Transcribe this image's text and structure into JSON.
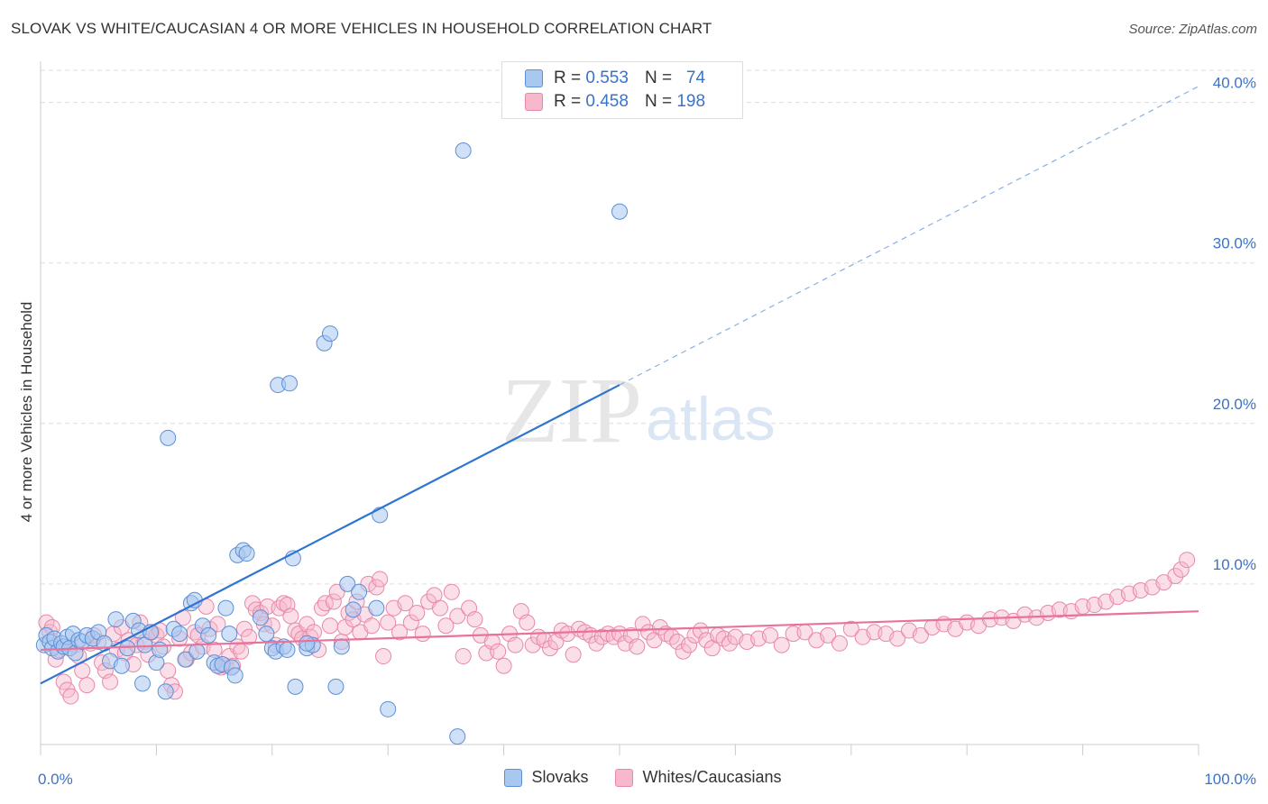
{
  "header": {
    "title": "SLOVAK VS WHITE/CAUCASIAN 4 OR MORE VEHICLES IN HOUSEHOLD CORRELATION CHART",
    "source": "Source: ZipAtlas.com"
  },
  "watermark": {
    "zip": "ZIP",
    "atlas": "atlas"
  },
  "colors": {
    "blue_fill": "#a9c8f0",
    "blue_stroke": "#5b8fd6",
    "blue_line": "#2f74d0",
    "pink_fill": "#f7b8cb",
    "pink_stroke": "#e888a8",
    "pink_line": "#e8739a",
    "tick_text": "#3b72c9"
  },
  "legend": {
    "rows": [
      {
        "r_label": "R =",
        "r_value": "0.553",
        "n_label": "N =",
        "n_value": "74"
      },
      {
        "r_label": "R =",
        "r_value": "0.458",
        "n_label": "N =",
        "n_value": "198"
      }
    ],
    "bottom": [
      "Slovaks",
      "Whites/Caucasians"
    ]
  },
  "chart_data": {
    "type": "scatter",
    "title": "SLOVAK VS WHITE/CAUCASIAN 4 OR MORE VEHICLES IN HOUSEHOLD CORRELATION CHART",
    "xlabel": "",
    "ylabel": "4 or more Vehicles in Household",
    "xlim": [
      0,
      100
    ],
    "ylim": [
      0,
      42
    ],
    "x_tick_labels": [
      "0.0%",
      "100.0%"
    ],
    "y_ticks": [
      10,
      20,
      30,
      40
    ],
    "y_tick_labels": [
      "10.0%",
      "20.0%",
      "30.0%",
      "40.0%"
    ],
    "grid": true,
    "legend_position": "top-center",
    "series": [
      {
        "name": "Slovaks",
        "R": 0.553,
        "N": 74,
        "trend": {
          "x0": 0,
          "y0": 3.8,
          "x1": 50,
          "y1": 22.4,
          "dashed_to_x": 100,
          "dashed_to_y": 41.0
        },
        "points": [
          [
            0.3,
            6.2
          ],
          [
            0.5,
            6.8
          ],
          [
            0.8,
            6.4
          ],
          [
            1.0,
            6.0
          ],
          [
            1.2,
            6.6
          ],
          [
            1.5,
            5.8
          ],
          [
            1.8,
            6.3
          ],
          [
            2.0,
            6.1
          ],
          [
            2.3,
            6.7
          ],
          [
            2.5,
            6.0
          ],
          [
            2.8,
            6.9
          ],
          [
            3.0,
            5.7
          ],
          [
            3.3,
            6.5
          ],
          [
            3.6,
            6.4
          ],
          [
            4.0,
            6.8
          ],
          [
            4.5,
            6.6
          ],
          [
            5.0,
            7.0
          ],
          [
            5.5,
            6.3
          ],
          [
            6.0,
            5.2
          ],
          [
            6.5,
            7.8
          ],
          [
            7.0,
            4.9
          ],
          [
            7.5,
            6.0
          ],
          [
            8.0,
            7.7
          ],
          [
            8.5,
            7.1
          ],
          [
            8.8,
            3.8
          ],
          [
            9.0,
            6.2
          ],
          [
            9.5,
            7.0
          ],
          [
            10.0,
            5.1
          ],
          [
            10.3,
            5.9
          ],
          [
            10.8,
            3.3
          ],
          [
            11.0,
            19.1
          ],
          [
            11.5,
            7.2
          ],
          [
            12.0,
            6.9
          ],
          [
            12.5,
            5.3
          ],
          [
            13.0,
            8.8
          ],
          [
            13.3,
            9.0
          ],
          [
            13.5,
            5.8
          ],
          [
            14.0,
            7.4
          ],
          [
            14.5,
            6.8
          ],
          [
            15.0,
            5.1
          ],
          [
            15.3,
            4.9
          ],
          [
            15.7,
            5.0
          ],
          [
            16.0,
            8.5
          ],
          [
            16.3,
            6.9
          ],
          [
            16.5,
            4.8
          ],
          [
            16.8,
            4.3
          ],
          [
            17.0,
            11.8
          ],
          [
            17.5,
            12.1
          ],
          [
            17.8,
            11.9
          ],
          [
            19.0,
            7.9
          ],
          [
            19.5,
            6.9
          ],
          [
            20.0,
            6.0
          ],
          [
            20.3,
            5.8
          ],
          [
            20.5,
            22.4
          ],
          [
            21.0,
            6.1
          ],
          [
            21.3,
            5.9
          ],
          [
            21.5,
            22.5
          ],
          [
            21.8,
            11.6
          ],
          [
            22.0,
            3.6
          ],
          [
            23.0,
            6.0
          ],
          [
            23.5,
            6.2
          ],
          [
            24.5,
            25.0
          ],
          [
            25.0,
            25.6
          ],
          [
            23.0,
            6.3
          ],
          [
            25.5,
            3.6
          ],
          [
            26.0,
            6.1
          ],
          [
            26.5,
            10.0
          ],
          [
            27.0,
            8.4
          ],
          [
            27.5,
            9.5
          ],
          [
            29.0,
            8.5
          ],
          [
            29.3,
            14.3
          ],
          [
            30.0,
            2.2
          ],
          [
            36.0,
            0.5
          ],
          [
            36.5,
            37.0
          ],
          [
            50.0,
            33.2
          ]
        ]
      },
      {
        "name": "Whites/Caucasians",
        "R": 0.458,
        "N": 198,
        "trend": {
          "x0": 0,
          "y0": 5.9,
          "x1": 100,
          "y1": 8.3
        },
        "points": [
          [
            0.5,
            7.6
          ],
          [
            0.8,
            7.0
          ],
          [
            1.0,
            7.3
          ],
          [
            1.3,
            5.3
          ],
          [
            1.6,
            5.9
          ],
          [
            2.0,
            3.9
          ],
          [
            2.3,
            3.4
          ],
          [
            2.6,
            3.0
          ],
          [
            3.0,
            6.2
          ],
          [
            3.3,
            5.5
          ],
          [
            3.6,
            4.6
          ],
          [
            4.0,
            3.7
          ],
          [
            4.3,
            6.3
          ],
          [
            4.6,
            6.8
          ],
          [
            5.0,
            6.4
          ],
          [
            5.3,
            5.1
          ],
          [
            5.6,
            4.6
          ],
          [
            6.0,
            3.9
          ],
          [
            6.3,
            6.9
          ],
          [
            6.6,
            5.9
          ],
          [
            7.0,
            7.3
          ],
          [
            7.3,
            5.7
          ],
          [
            7.6,
            6.5
          ],
          [
            8.0,
            5.0
          ],
          [
            8.3,
            6.2
          ],
          [
            8.6,
            7.6
          ],
          [
            9.0,
            6.4
          ],
          [
            9.3,
            5.6
          ],
          [
            9.6,
            7.0
          ],
          [
            10.0,
            6.8
          ],
          [
            10.3,
            7.1
          ],
          [
            10.6,
            6.1
          ],
          [
            11.0,
            4.6
          ],
          [
            11.3,
            3.7
          ],
          [
            11.6,
            3.3
          ],
          [
            12.0,
            6.6
          ],
          [
            12.3,
            7.9
          ],
          [
            12.6,
            5.3
          ],
          [
            13.0,
            5.7
          ],
          [
            13.3,
            7.0
          ],
          [
            13.6,
            6.8
          ],
          [
            14.0,
            6.1
          ],
          [
            14.3,
            8.6
          ],
          [
            14.6,
            7.2
          ],
          [
            15.0,
            5.9
          ],
          [
            15.3,
            7.5
          ],
          [
            15.6,
            4.8
          ],
          [
            16.0,
            4.9
          ],
          [
            16.3,
            5.5
          ],
          [
            16.6,
            4.9
          ],
          [
            17.0,
            6.1
          ],
          [
            17.3,
            5.8
          ],
          [
            17.6,
            7.2
          ],
          [
            18.0,
            6.7
          ],
          [
            18.3,
            8.8
          ],
          [
            18.6,
            8.4
          ],
          [
            19.0,
            8.2
          ],
          [
            19.3,
            7.5
          ],
          [
            19.6,
            8.6
          ],
          [
            20.0,
            7.4
          ],
          [
            20.3,
            6.2
          ],
          [
            20.6,
            8.5
          ],
          [
            21.0,
            8.8
          ],
          [
            21.3,
            8.7
          ],
          [
            21.6,
            8.0
          ],
          [
            22.0,
            7.1
          ],
          [
            22.3,
            6.9
          ],
          [
            22.6,
            6.6
          ],
          [
            23.0,
            7.5
          ],
          [
            23.3,
            6.7
          ],
          [
            23.6,
            7.0
          ],
          [
            24.0,
            5.9
          ],
          [
            24.3,
            8.5
          ],
          [
            24.6,
            8.8
          ],
          [
            25.0,
            7.4
          ],
          [
            25.3,
            8.9
          ],
          [
            25.6,
            9.5
          ],
          [
            26.0,
            6.4
          ],
          [
            26.3,
            7.3
          ],
          [
            26.6,
            8.2
          ],
          [
            27.0,
            7.8
          ],
          [
            27.3,
            8.9
          ],
          [
            27.6,
            7.0
          ],
          [
            28.0,
            8.1
          ],
          [
            28.3,
            10.0
          ],
          [
            28.6,
            7.4
          ],
          [
            29.0,
            9.8
          ],
          [
            29.3,
            10.3
          ],
          [
            29.6,
            5.5
          ],
          [
            30.0,
            7.6
          ],
          [
            30.5,
            8.5
          ],
          [
            31.0,
            7.0
          ],
          [
            31.5,
            8.8
          ],
          [
            32.0,
            7.6
          ],
          [
            32.5,
            8.2
          ],
          [
            33.0,
            6.9
          ],
          [
            33.5,
            8.9
          ],
          [
            34.0,
            9.3
          ],
          [
            34.5,
            8.5
          ],
          [
            35.0,
            7.4
          ],
          [
            35.5,
            9.5
          ],
          [
            36.0,
            8.0
          ],
          [
            36.5,
            5.5
          ],
          [
            37.0,
            8.5
          ],
          [
            37.5,
            7.8
          ],
          [
            38.0,
            6.8
          ],
          [
            38.5,
            5.7
          ],
          [
            39.0,
            6.4
          ],
          [
            39.5,
            5.8
          ],
          [
            40.0,
            4.9
          ],
          [
            40.5,
            6.9
          ],
          [
            41.0,
            6.2
          ],
          [
            41.5,
            8.3
          ],
          [
            42.0,
            7.6
          ],
          [
            42.5,
            6.2
          ],
          [
            43.0,
            6.7
          ],
          [
            43.5,
            6.5
          ],
          [
            44.0,
            6.0
          ],
          [
            44.5,
            6.4
          ],
          [
            45.0,
            7.1
          ],
          [
            45.5,
            6.9
          ],
          [
            46.0,
            5.6
          ],
          [
            46.5,
            7.2
          ],
          [
            47.0,
            7.0
          ],
          [
            47.5,
            6.8
          ],
          [
            48.0,
            6.3
          ],
          [
            48.5,
            6.7
          ],
          [
            49.0,
            6.9
          ],
          [
            49.5,
            6.7
          ],
          [
            50.0,
            6.9
          ],
          [
            50.5,
            6.3
          ],
          [
            51.0,
            6.8
          ],
          [
            51.5,
            6.1
          ],
          [
            52.0,
            7.5
          ],
          [
            52.5,
            7.0
          ],
          [
            53.0,
            6.5
          ],
          [
            53.5,
            7.3
          ],
          [
            54.0,
            6.9
          ],
          [
            54.5,
            6.7
          ],
          [
            55.0,
            6.4
          ],
          [
            55.5,
            5.8
          ],
          [
            56.0,
            6.2
          ],
          [
            56.5,
            6.8
          ],
          [
            57.0,
            7.1
          ],
          [
            57.5,
            6.5
          ],
          [
            58.0,
            6.0
          ],
          [
            58.5,
            6.8
          ],
          [
            59.0,
            6.6
          ],
          [
            59.5,
            6.3
          ],
          [
            60.0,
            6.7
          ],
          [
            61.0,
            6.4
          ],
          [
            62.0,
            6.6
          ],
          [
            63.0,
            6.8
          ],
          [
            64.0,
            6.2
          ],
          [
            65.0,
            6.9
          ],
          [
            66.0,
            7.0
          ],
          [
            67.0,
            6.5
          ],
          [
            68.0,
            6.8
          ],
          [
            69.0,
            6.3
          ],
          [
            70.0,
            7.2
          ],
          [
            71.0,
            6.7
          ],
          [
            72.0,
            7.0
          ],
          [
            73.0,
            6.9
          ],
          [
            74.0,
            6.6
          ],
          [
            75.0,
            7.1
          ],
          [
            76.0,
            6.8
          ],
          [
            77.0,
            7.3
          ],
          [
            78.0,
            7.5
          ],
          [
            79.0,
            7.2
          ],
          [
            80.0,
            7.6
          ],
          [
            81.0,
            7.4
          ],
          [
            82.0,
            7.8
          ],
          [
            83.0,
            7.9
          ],
          [
            84.0,
            7.7
          ],
          [
            85.0,
            8.1
          ],
          [
            86.0,
            7.9
          ],
          [
            87.0,
            8.2
          ],
          [
            88.0,
            8.4
          ],
          [
            89.0,
            8.3
          ],
          [
            90.0,
            8.6
          ],
          [
            91.0,
            8.7
          ],
          [
            92.0,
            8.9
          ],
          [
            93.0,
            9.2
          ],
          [
            94.0,
            9.4
          ],
          [
            95.0,
            9.6
          ],
          [
            96.0,
            9.8
          ],
          [
            97.0,
            10.1
          ],
          [
            98.0,
            10.5
          ],
          [
            98.5,
            10.9
          ],
          [
            99.0,
            11.5
          ]
        ]
      }
    ]
  }
}
